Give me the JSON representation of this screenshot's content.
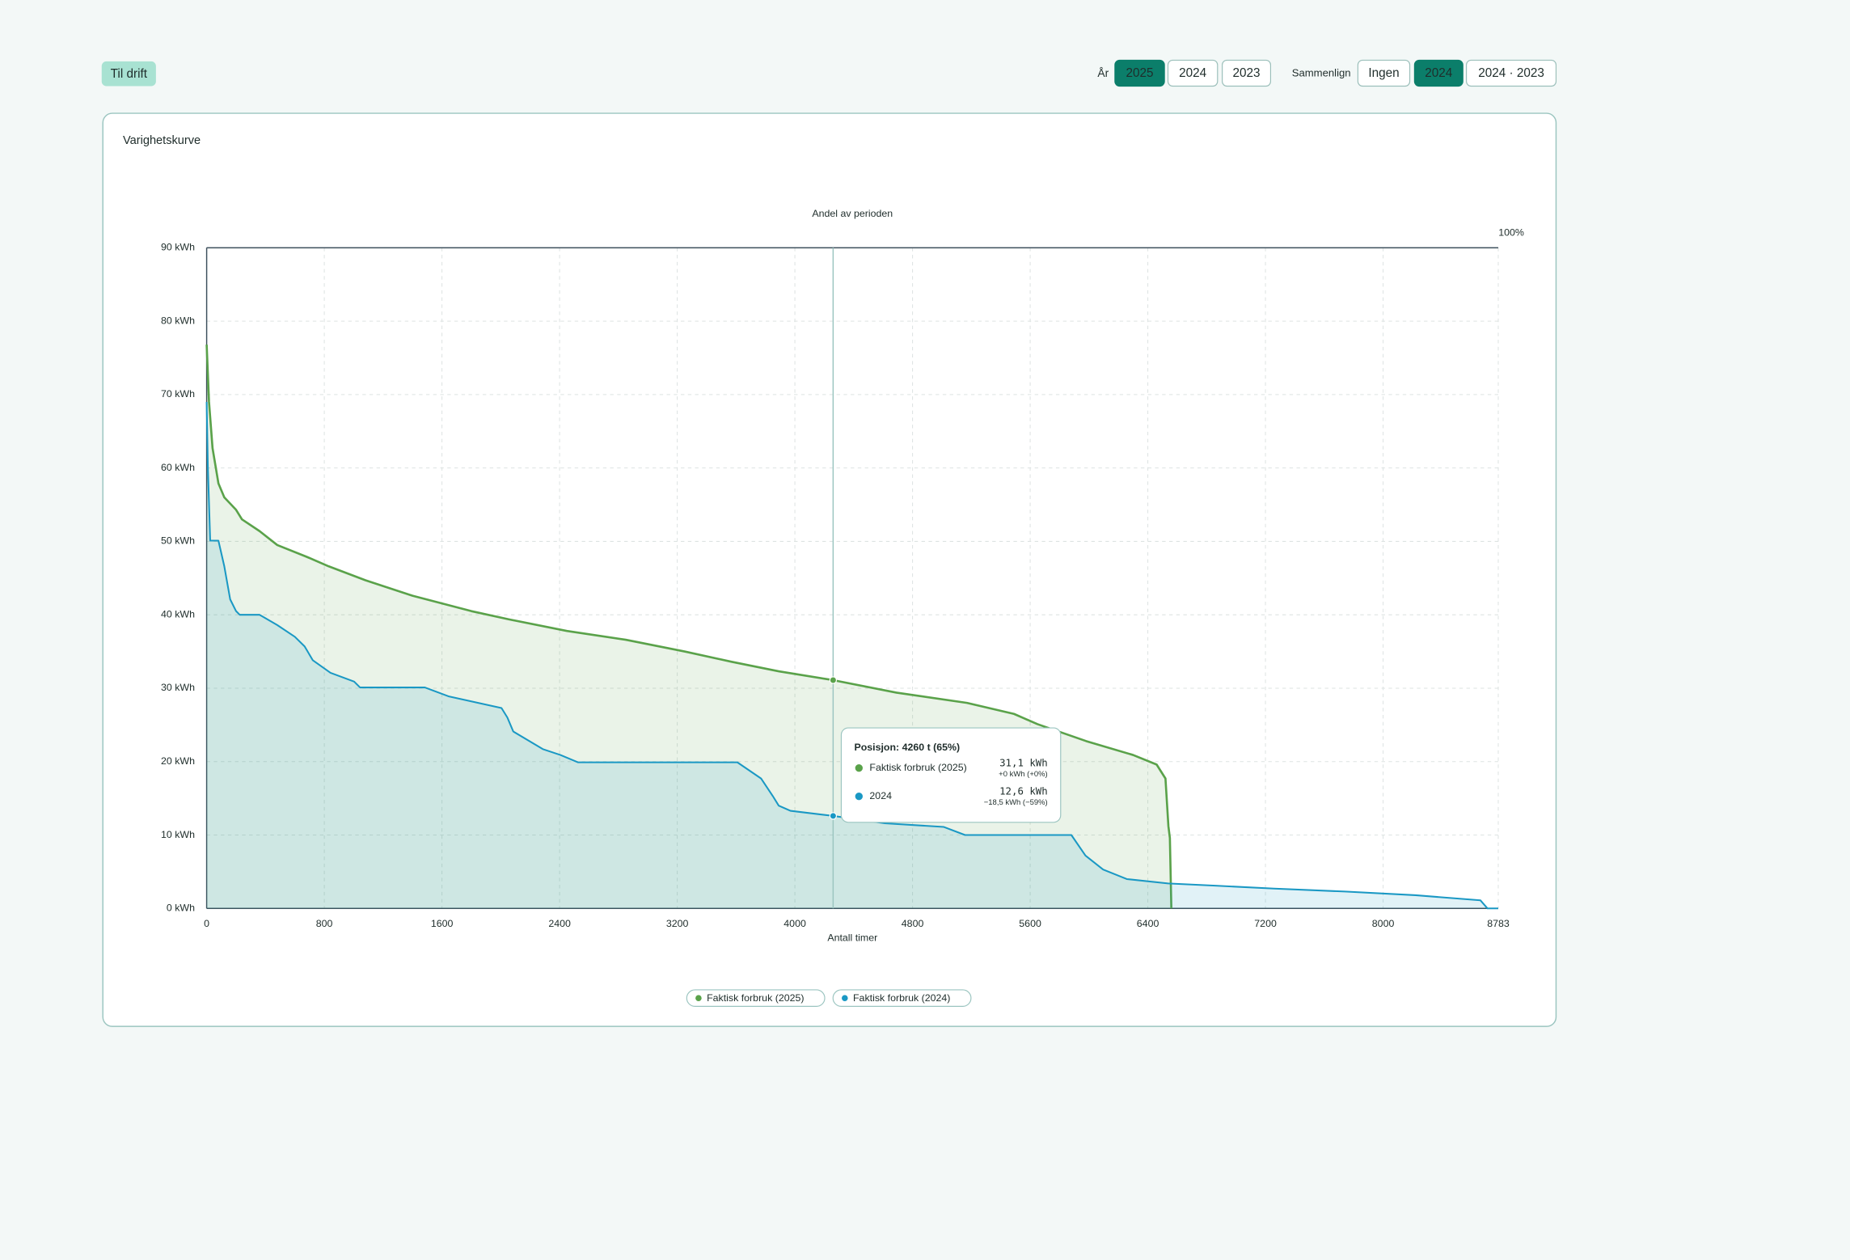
{
  "header": {
    "back_button": "Til drift",
    "year_label": "År",
    "years": [
      "2025",
      "2024",
      "2023"
    ],
    "year_active": 0,
    "compare_label": "Sammenlign",
    "compare_options": [
      "Ingen",
      "2024",
      "2024 · 2023"
    ],
    "compare_active": 1
  },
  "chart_data": {
    "type": "line",
    "title": "Varighetskurve",
    "top_axis_label": "Andel av perioden",
    "top_axis_end_label": "100%",
    "x_label": "Antall timer",
    "xlim": [
      0,
      8783
    ],
    "xticks": [
      0,
      800,
      1600,
      2400,
      3200,
      4000,
      4800,
      5600,
      6400,
      7200,
      8000,
      8783
    ],
    "ylim": [
      0,
      90
    ],
    "yticks": [
      {
        "value": 0,
        "label": "0 kWh"
      },
      {
        "value": 10,
        "label": "10 kWh"
      },
      {
        "value": 20,
        "label": "20 kWh"
      },
      {
        "value": 30,
        "label": "30 kWh"
      },
      {
        "value": 40,
        "label": "40 kWh"
      },
      {
        "value": 50,
        "label": "50 kWh"
      },
      {
        "value": 60,
        "label": "60 kWh"
      },
      {
        "value": 70,
        "label": "70 kWh"
      },
      {
        "value": 80,
        "label": "80 kWh"
      },
      {
        "value": 90,
        "label": "90 kWh"
      }
    ],
    "grid": true,
    "area": true,
    "series": [
      {
        "name": "Faktisk forbruk (2025)",
        "color": "#5aa24a",
        "x": [
          0,
          16,
          40,
          80,
          120,
          200,
          240,
          360,
          480,
          680,
          830,
          1080,
          1400,
          1800,
          2050,
          2450,
          2850,
          3250,
          3570,
          3890,
          4260,
          4690,
          5170,
          5490,
          5650,
          5980,
          6300,
          6460,
          6520,
          6540,
          6550,
          6560
        ],
        "values": [
          76.8,
          69,
          62.7,
          57.9,
          56,
          54.3,
          53,
          51.4,
          49.5,
          47.9,
          46.6,
          44.7,
          42.6,
          40.5,
          39.4,
          37.8,
          36.6,
          35,
          33.6,
          32.3,
          31.1,
          29.4,
          28,
          26.5,
          25.1,
          22.8,
          20.9,
          19.6,
          17.7,
          11.2,
          9.6,
          0
        ]
      },
      {
        "name": "Faktisk forbruk (2024)",
        "color": "#1a98c4",
        "x": [
          0,
          8,
          24,
          80,
          120,
          160,
          200,
          225,
          360,
          480,
          600,
          666,
          722,
          842,
          1003,
          1043,
          1484,
          1644,
          2005,
          2045,
          2085,
          2286,
          2406,
          2526,
          3609,
          3770,
          3850,
          3890,
          3970,
          4260,
          4612,
          5013,
          5157,
          5880,
          5976,
          6096,
          6257,
          6537,
          6858,
          7259,
          7740,
          8221,
          8662,
          8710,
          8783
        ],
        "values": [
          69,
          60.3,
          50.1,
          50.1,
          46.6,
          42.1,
          40.5,
          40,
          40,
          38.6,
          37,
          35.7,
          33.8,
          32.1,
          30.9,
          30.1,
          30.1,
          28.9,
          27.3,
          26,
          24.1,
          21.7,
          20.9,
          19.9,
          19.9,
          17.7,
          15.3,
          14,
          13.3,
          12.6,
          11.6,
          11.1,
          10,
          10,
          7.2,
          5.3,
          4,
          3.4,
          3.1,
          2.7,
          2.3,
          1.8,
          1.1,
          0,
          0
        ]
      }
    ],
    "tooltip": {
      "title": "Posisjon: 4260 t (65%)",
      "x": 4260,
      "rows": [
        {
          "name": "Faktisk forbruk (2025)",
          "value": 31.1,
          "value_label": "31,1 kWh",
          "delta_label": "+0 kWh (+0%)"
        },
        {
          "name": "2024",
          "value": 12.6,
          "value_label": "12,6 kWh",
          "delta_label": "−18,5 kWh (−59%)"
        }
      ]
    }
  }
}
